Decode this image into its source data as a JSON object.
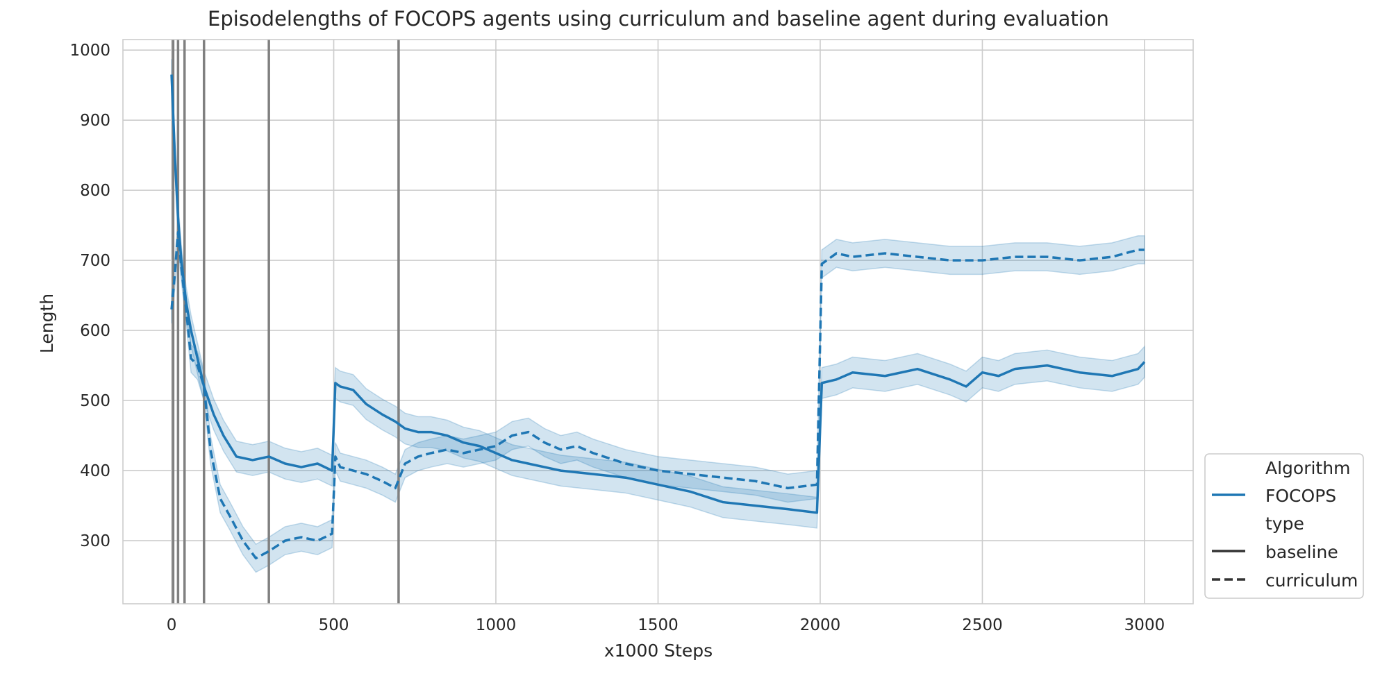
{
  "chart_data": {
    "type": "line",
    "title": "Episodelengths of FOCOPS agents using curriculum and baseline agent during evaluation",
    "xlabel": "x1000 Steps",
    "ylabel": "Length",
    "xlim": [
      -150,
      3150
    ],
    "ylim": [
      210,
      1015
    ],
    "x_ticks": [
      0,
      500,
      1000,
      1500,
      2000,
      2500,
      3000
    ],
    "y_ticks": [
      300,
      400,
      500,
      600,
      700,
      800,
      900,
      1000
    ],
    "grid": true,
    "legend_position": "lower-right outside",
    "legend": {
      "hue_title": "Algorithm",
      "hue_entries": [
        {
          "label": "FOCOPS",
          "color": "#1f77b4"
        }
      ],
      "style_title": "type",
      "style_entries": [
        {
          "label": "baseline",
          "dash": "solid"
        },
        {
          "label": "curriculum",
          "dash": "dashed"
        }
      ]
    },
    "vertical_lines": [
      5,
      20,
      40,
      100,
      300,
      700
    ],
    "vertical_line_color": "#808080",
    "band_color": "#1f77b4",
    "series": [
      {
        "name": "baseline",
        "dash": "solid",
        "color": "#1f77b4",
        "band_halfwidth": 22,
        "x": [
          0,
          10,
          20,
          30,
          45,
          60,
          80,
          100,
          130,
          160,
          200,
          250,
          300,
          350,
          400,
          450,
          495,
          505,
          520,
          560,
          600,
          650,
          690,
          720,
          760,
          800,
          850,
          900,
          950,
          1000,
          1050,
          1100,
          1150,
          1200,
          1300,
          1400,
          1500,
          1600,
          1700,
          1800,
          1900,
          1990,
          2005,
          2050,
          2100,
          2200,
          2300,
          2400,
          2450,
          2500,
          2550,
          2600,
          2700,
          2800,
          2900,
          2980,
          3000
        ],
        "y": [
          965,
          850,
          760,
          700,
          640,
          600,
          560,
          520,
          480,
          450,
          420,
          415,
          420,
          410,
          405,
          410,
          400,
          525,
          520,
          515,
          495,
          480,
          470,
          460,
          455,
          455,
          450,
          440,
          435,
          425,
          415,
          410,
          405,
          400,
          395,
          390,
          380,
          370,
          355,
          350,
          345,
          340,
          525,
          530,
          540,
          535,
          545,
          530,
          520,
          540,
          535,
          545,
          550,
          540,
          535,
          545,
          555
        ]
      },
      {
        "name": "curriculum",
        "dash": "dashed",
        "color": "#1f77b4",
        "band_halfwidth": 20,
        "x": [
          0,
          10,
          20,
          30,
          45,
          60,
          80,
          100,
          120,
          150,
          180,
          220,
          260,
          300,
          350,
          400,
          450,
          495,
          505,
          520,
          560,
          600,
          650,
          690,
          720,
          760,
          800,
          850,
          900,
          950,
          1000,
          1050,
          1100,
          1150,
          1200,
          1250,
          1300,
          1400,
          1500,
          1600,
          1700,
          1800,
          1900,
          1990,
          2005,
          2050,
          2100,
          2200,
          2300,
          2400,
          2500,
          2600,
          2700,
          2800,
          2900,
          2980,
          3000
        ],
        "y": [
          630,
          680,
          740,
          690,
          630,
          560,
          550,
          520,
          430,
          360,
          335,
          300,
          275,
          285,
          300,
          305,
          300,
          310,
          420,
          405,
          400,
          395,
          385,
          375,
          410,
          420,
          425,
          430,
          425,
          430,
          435,
          450,
          455,
          440,
          430,
          435,
          425,
          410,
          400,
          395,
          390,
          385,
          375,
          380,
          695,
          710,
          705,
          710,
          705,
          700,
          700,
          705,
          705,
          700,
          705,
          715,
          715
        ]
      }
    ]
  }
}
